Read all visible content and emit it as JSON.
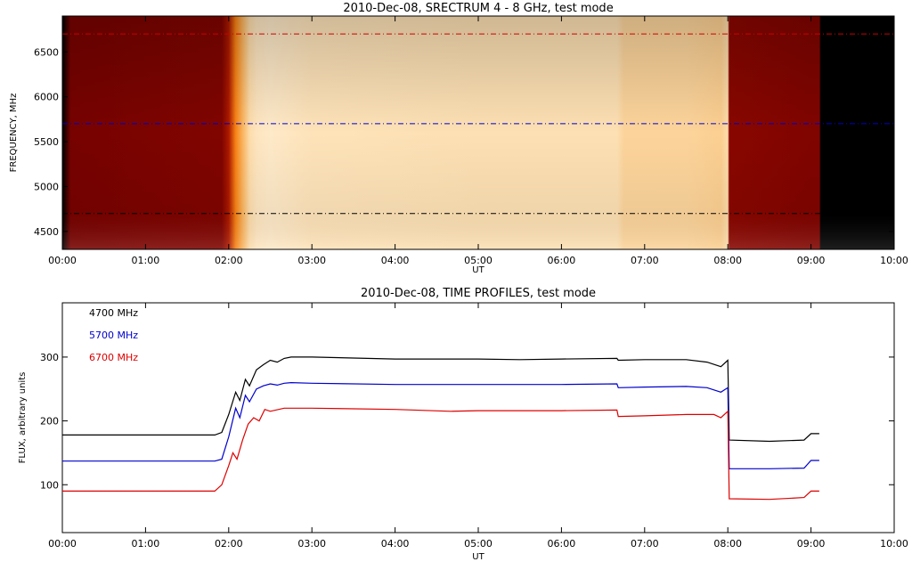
{
  "chart_data": [
    {
      "type": "heatmap",
      "title": "2010-Dec-08,  SRECTRUM 4 - 8 GHz,  test mode",
      "xlabel": "UT",
      "ylabel": "FREQUENCY, MHz",
      "xlim": [
        "00:00",
        "10:00"
      ],
      "ylim": [
        4300,
        6900
      ],
      "x_ticks": [
        "00:00",
        "01:00",
        "02:00",
        "03:00",
        "04:00",
        "05:00",
        "06:00",
        "07:00",
        "08:00",
        "09:00",
        "10:00"
      ],
      "y_ticks": [
        4500,
        5000,
        5500,
        6000,
        6500
      ],
      "colormap": "red-temperature",
      "reference_lines": [
        {
          "frequency": 4700,
          "color": "#000000",
          "style": "dash-dot"
        },
        {
          "frequency": 5700,
          "color": "#0000cc",
          "style": "dash-dot"
        },
        {
          "frequency": 6700,
          "color": "#cc0000",
          "style": "dash-dot"
        }
      ],
      "intensity_profile": {
        "time": [
          "00:00",
          "00:06",
          "01:55",
          "02:00",
          "02:05",
          "02:10",
          "02:15",
          "02:20",
          "02:30",
          "03:00",
          "05:00",
          "06:40",
          "06:45",
          "07:30",
          "07:55",
          "08:00",
          "08:01",
          "09:00",
          "09:06",
          "09:07",
          "10:00"
        ],
        "level": [
          0.0,
          0.18,
          0.2,
          0.3,
          0.55,
          0.7,
          0.85,
          0.92,
          0.95,
          0.9,
          0.88,
          0.88,
          0.82,
          0.82,
          0.8,
          0.85,
          0.22,
          0.2,
          0.2,
          0.0,
          0.0
        ]
      }
    },
    {
      "type": "line",
      "title": "2010-Dec-08,  TIME PROFILES,  test mode",
      "xlabel": "UT",
      "ylabel": "FLUX, arbitrary units",
      "xlim": [
        "00:00",
        "10:00"
      ],
      "ylim": [
        25,
        385
      ],
      "x_ticks": [
        "00:00",
        "01:00",
        "02:00",
        "03:00",
        "04:00",
        "05:00",
        "06:00",
        "07:00",
        "08:00",
        "09:00",
        "10:00"
      ],
      "y_ticks": [
        100,
        200,
        300
      ],
      "legend_position": "top-left",
      "series": [
        {
          "name": "4700 MHz",
          "color": "#000000",
          "x": [
            "00:00",
            "01:50",
            "01:55",
            "02:00",
            "02:05",
            "02:08",
            "02:12",
            "02:15",
            "02:20",
            "02:25",
            "02:30",
            "02:35",
            "02:40",
            "02:45",
            "03:00",
            "04:00",
            "05:00",
            "05:30",
            "06:00",
            "06:40",
            "06:41",
            "07:00",
            "07:30",
            "07:45",
            "07:55",
            "08:00",
            "08:01",
            "08:30",
            "08:55",
            "09:00",
            "09:06"
          ],
          "values": [
            178,
            178,
            182,
            210,
            245,
            232,
            265,
            255,
            280,
            288,
            295,
            292,
            298,
            300,
            300,
            297,
            297,
            296,
            297,
            298,
            295,
            296,
            296,
            292,
            285,
            295,
            170,
            168,
            170,
            180,
            180
          ]
        },
        {
          "name": "5700 MHz",
          "color": "#0000cc",
          "x": [
            "00:00",
            "01:50",
            "01:55",
            "02:00",
            "02:05",
            "02:08",
            "02:12",
            "02:15",
            "02:20",
            "02:25",
            "02:30",
            "02:35",
            "02:40",
            "02:45",
            "03:00",
            "04:00",
            "05:00",
            "05:30",
            "06:00",
            "06:40",
            "06:41",
            "07:00",
            "07:30",
            "07:45",
            "07:55",
            "08:00",
            "08:01",
            "08:30",
            "08:55",
            "09:00",
            "09:06"
          ],
          "values": [
            137,
            137,
            140,
            175,
            220,
            205,
            240,
            230,
            250,
            255,
            258,
            256,
            259,
            260,
            259,
            257,
            257,
            257,
            257,
            258,
            252,
            253,
            254,
            252,
            245,
            252,
            125,
            125,
            126,
            138,
            138
          ]
        },
        {
          "name": "6700 MHz",
          "color": "#dd0000",
          "x": [
            "00:00",
            "01:50",
            "01:55",
            "02:00",
            "02:03",
            "02:06",
            "02:10",
            "02:14",
            "02:18",
            "02:22",
            "02:26",
            "02:30",
            "02:40",
            "02:50",
            "03:00",
            "04:00",
            "04:40",
            "05:00",
            "06:00",
            "06:40",
            "06:41",
            "07:00",
            "07:30",
            "07:50",
            "07:55",
            "08:00",
            "08:01",
            "08:30",
            "08:55",
            "09:00",
            "09:06"
          ],
          "values": [
            90,
            90,
            100,
            130,
            150,
            140,
            170,
            195,
            205,
            200,
            218,
            215,
            220,
            220,
            220,
            218,
            215,
            216,
            216,
            217,
            207,
            208,
            210,
            210,
            205,
            215,
            78,
            77,
            80,
            90,
            90
          ]
        }
      ]
    }
  ]
}
